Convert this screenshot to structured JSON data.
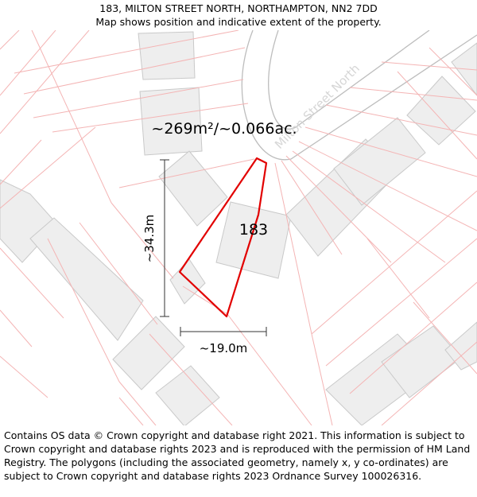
{
  "header": {
    "address": "183, MILTON STREET NORTH, NORTHAMPTON, NN2 7DD",
    "subtitle": "Map shows position and indicative extent of the property."
  },
  "map": {
    "area_label": "~269m²/~0.066ac.",
    "street_label": "Milton Street North",
    "house_number": "183",
    "height_label": "~34.3m",
    "width_label": "~19.0m",
    "colors": {
      "boundary": "#e20000",
      "parcel_lines": "#f4b4b4",
      "buildings_fill": "#eeeeee",
      "buildings_stroke": "#c9c9c9",
      "road_edge": "#bdbdbd"
    }
  },
  "footer": {
    "copyright": "Contains OS data © Crown copyright and database right 2021. This information is subject to Crown copyright and database rights 2023 and is reproduced with the permission of HM Land Registry. The polygons (including the associated geometry, namely x, y co-ordinates) are subject to Crown copyright and database rights 2023 Ordnance Survey 100026316."
  }
}
